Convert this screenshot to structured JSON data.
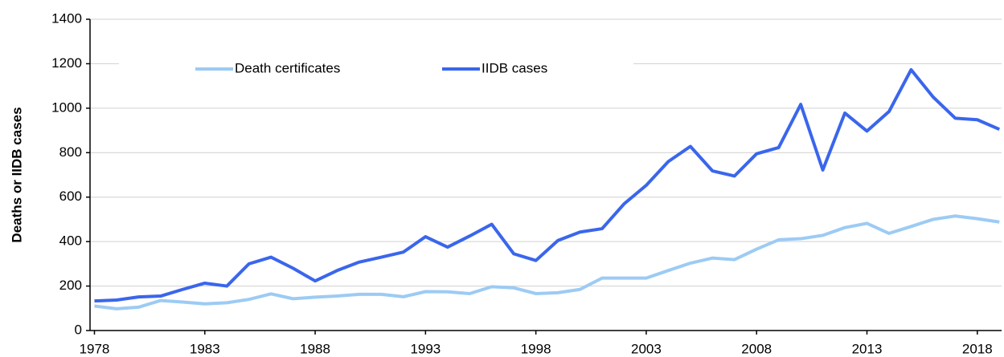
{
  "chart_data": {
    "type": "line",
    "y_label": "Deaths or IIDB cases",
    "x": [
      1978,
      1979,
      1980,
      1981,
      1982,
      1983,
      1984,
      1985,
      1986,
      1987,
      1988,
      1989,
      1990,
      1991,
      1992,
      1993,
      1994,
      1995,
      1996,
      1997,
      1998,
      1999,
      2000,
      2001,
      2002,
      2003,
      2004,
      2005,
      2006,
      2007,
      2008,
      2009,
      2010,
      2011,
      2012,
      2013,
      2014,
      2015,
      2016,
      2017,
      2018,
      2019
    ],
    "series": [
      {
        "name": "Death certificates",
        "color": "#9ccbf4",
        "values": [
          110,
          98,
          105,
          135,
          128,
          120,
          125,
          140,
          165,
          143,
          150,
          155,
          163,
          163,
          152,
          175,
          174,
          166,
          197,
          192,
          166,
          170,
          185,
          236,
          236,
          236,
          270,
          303,
          326,
          319,
          366,
          408,
          413,
          428,
          463,
          482,
          437,
          468,
          500,
          515,
          503,
          488
        ]
      },
      {
        "name": "IIDB cases",
        "color": "#3a66ec",
        "values": [
          133,
          137,
          151,
          155,
          185,
          213,
          200,
          300,
          330,
          280,
          223,
          270,
          308,
          330,
          353,
          422,
          375,
          425,
          478,
          345,
          315,
          405,
          443,
          458,
          570,
          653,
          760,
          828,
          718,
          695,
          795,
          823,
          1017,
          722,
          978,
          897,
          985,
          1173,
          1050,
          955,
          948,
          905
        ]
      }
    ],
    "xlim": [
      1977.8,
      2019.1
    ],
    "xticks": [
      1978,
      1983,
      1988,
      1993,
      1998,
      2003,
      2008,
      2013,
      2018
    ],
    "ylim": [
      0,
      1400
    ],
    "yticks": [
      0,
      200,
      400,
      600,
      800,
      1000,
      1200,
      1400
    ],
    "grid": true,
    "legend": "top"
  }
}
